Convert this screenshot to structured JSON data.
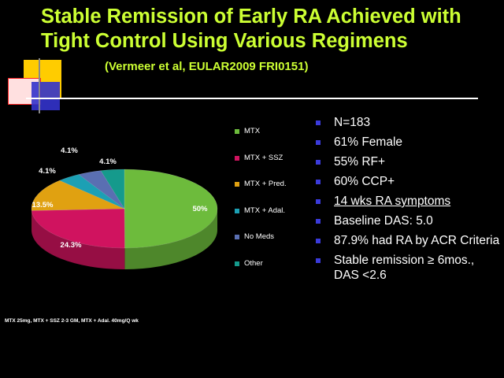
{
  "slide": {
    "title_line1": "Stable Remission of Early RA Achieved with",
    "title_line2": "Tight Control Using Various Regimens",
    "subtitle": "(Vermeer et al, EULAR2009 FRI0151)",
    "footnote": "MTX 25mg, MTX + SSZ 2-3 GM, MTX + Adal. 40mg/Q wk"
  },
  "chart_data": {
    "type": "pie",
    "categories": [
      "MTX",
      "MTX + SSZ",
      "MTX + Pred.",
      "MTX + Adal.",
      "No Meds",
      "Other"
    ],
    "values": [
      50,
      24.3,
      13.5,
      4.1,
      4.1,
      4.1
    ],
    "labels": [
      "50%",
      "24.3%",
      "13.5%",
      "4.1%",
      "4.1%",
      "4.1%"
    ],
    "colors": [
      "#6dbb3c",
      "#d0135f",
      "#e0a111",
      "#1ca0b4",
      "#5a6fb2",
      "#159a8c"
    ],
    "legend_position": "right"
  },
  "bullets": [
    {
      "text": "N=183",
      "underline": false
    },
    {
      "text": "61% Female",
      "underline": false
    },
    {
      "text": "55% RF+",
      "underline": false
    },
    {
      "text": "60% CCP+",
      "underline": false
    },
    {
      "text": "14 wks RA symptoms",
      "underline": true
    },
    {
      "text": "Baseline DAS: 5.0",
      "underline": false
    },
    {
      "text": "87.9% had RA by  ACR Criteria",
      "underline": false
    },
    {
      "text": "Stable remission ≥ 6mos., DAS <2.6",
      "underline": false
    }
  ],
  "colors": {
    "title": "#ccff33",
    "bullet_marker": "#3b3bdb",
    "background": "#000000"
  }
}
